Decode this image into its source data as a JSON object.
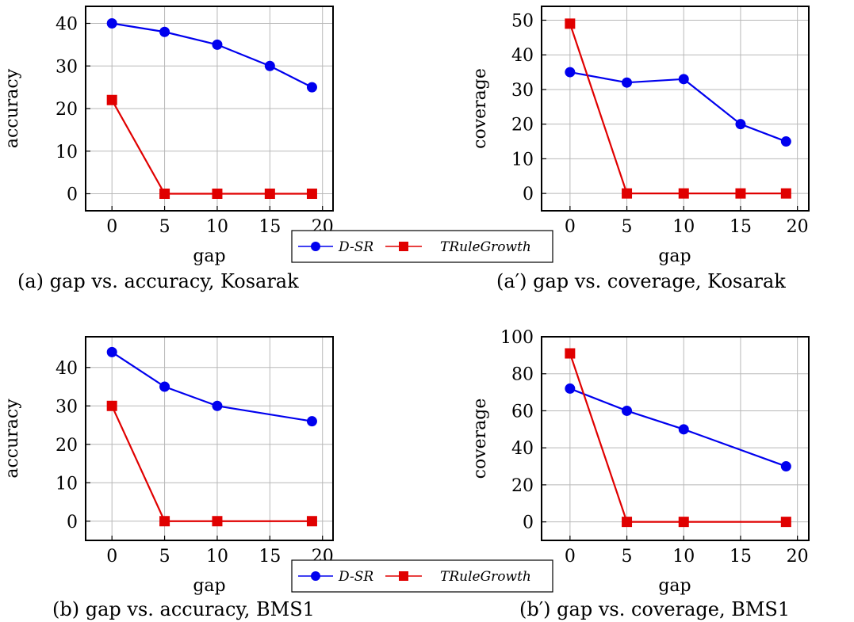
{
  "colors": {
    "d_sr": "#0000ee",
    "trulegrowth": "#e00000",
    "grid": "#b8b8b8"
  },
  "legend": [
    {
      "label": "D-SR",
      "marker": "circle"
    },
    {
      "label": "TRuleGrowth",
      "marker": "square"
    }
  ],
  "chart_data": [
    {
      "type": "line",
      "caption": "(a) gap vs. accuracy, Kosarak",
      "xlabel": "gap",
      "ylabel": "accuracy",
      "xlim": [
        -2.5,
        21
      ],
      "ylim": [
        -4,
        44
      ],
      "xticks": [
        0,
        5,
        10,
        15,
        20
      ],
      "yticks": [
        0,
        10,
        20,
        30,
        40
      ],
      "grid": true,
      "series": [
        {
          "name": "D-SR",
          "x": [
            0,
            5,
            10,
            15,
            19
          ],
          "values": [
            40,
            38,
            35,
            30,
            25
          ]
        },
        {
          "name": "TRuleGrowth",
          "x": [
            0,
            5,
            10,
            15,
            19
          ],
          "values": [
            22,
            0,
            0,
            0,
            0
          ]
        }
      ]
    },
    {
      "type": "line",
      "caption": "(a′) gap vs. coverage, Kosarak",
      "xlabel": "gap",
      "ylabel": "coverage",
      "xlim": [
        -2.5,
        21
      ],
      "ylim": [
        -5,
        54
      ],
      "xticks": [
        0,
        5,
        10,
        15,
        20
      ],
      "yticks": [
        0,
        10,
        20,
        30,
        40,
        50
      ],
      "grid": true,
      "series": [
        {
          "name": "D-SR",
          "x": [
            0,
            5,
            10,
            15,
            19
          ],
          "values": [
            35,
            32,
            33,
            20,
            15
          ]
        },
        {
          "name": "TRuleGrowth",
          "x": [
            0,
            5,
            10,
            15,
            19
          ],
          "values": [
            49,
            0,
            0,
            0,
            0
          ]
        }
      ]
    },
    {
      "type": "line",
      "caption": "(b) gap vs. accuracy, BMS1",
      "xlabel": "gap",
      "ylabel": "accuracy",
      "xlim": [
        -2.5,
        21
      ],
      "ylim": [
        -5,
        48
      ],
      "xticks": [
        0,
        5,
        10,
        15,
        20
      ],
      "yticks": [
        0,
        10,
        20,
        30,
        40
      ],
      "grid": true,
      "series": [
        {
          "name": "D-SR",
          "x": [
            0,
            5,
            10,
            19
          ],
          "values": [
            44,
            35,
            30,
            26
          ]
        },
        {
          "name": "TRuleGrowth",
          "x": [
            0,
            5,
            10,
            19
          ],
          "values": [
            30,
            0,
            0,
            0
          ]
        }
      ]
    },
    {
      "type": "line",
      "caption": "(b′) gap vs. coverage, BMS1",
      "xlabel": "gap",
      "ylabel": "coverage",
      "xlim": [
        -2.5,
        21
      ],
      "ylim": [
        -10,
        100
      ],
      "xticks": [
        0,
        5,
        10,
        15,
        20
      ],
      "yticks": [
        0,
        20,
        40,
        60,
        80,
        100
      ],
      "grid": true,
      "series": [
        {
          "name": "D-SR",
          "x": [
            0,
            5,
            10,
            19
          ],
          "values": [
            72,
            60,
            50,
            30
          ]
        },
        {
          "name": "TRuleGrowth",
          "x": [
            0,
            5,
            10,
            19
          ],
          "values": [
            91,
            0,
            0,
            0
          ]
        }
      ]
    }
  ]
}
